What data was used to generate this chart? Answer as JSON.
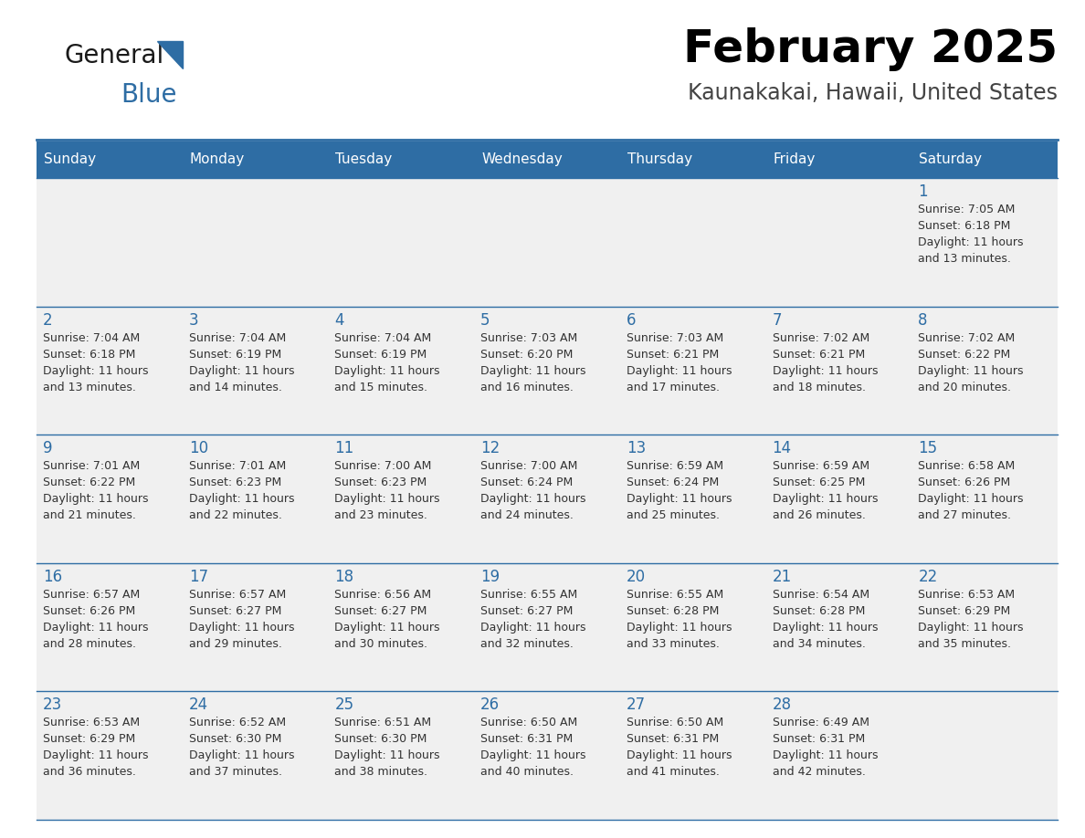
{
  "title": "February 2025",
  "subtitle": "Kaunakakai, Hawaii, United States",
  "header_bg": "#2E6DA4",
  "header_text_color": "#FFFFFF",
  "cell_bg": "#F0F0F0",
  "day_names": [
    "Sunday",
    "Monday",
    "Tuesday",
    "Wednesday",
    "Thursday",
    "Friday",
    "Saturday"
  ],
  "title_color": "#000000",
  "subtitle_color": "#444444",
  "date_color": "#2E6DA4",
  "info_color": "#333333",
  "line_color": "#2E6DA4",
  "logo_general_color": "#1a1a1a",
  "logo_blue_color": "#2E6DA4",
  "calendar": [
    [
      null,
      null,
      null,
      null,
      null,
      null,
      {
        "day": 1,
        "sunrise": "7:05 AM",
        "sunset": "6:18 PM",
        "daylight": "11 hours and 13 minutes."
      }
    ],
    [
      {
        "day": 2,
        "sunrise": "7:04 AM",
        "sunset": "6:18 PM",
        "daylight": "11 hours and 13 minutes."
      },
      {
        "day": 3,
        "sunrise": "7:04 AM",
        "sunset": "6:19 PM",
        "daylight": "11 hours and 14 minutes."
      },
      {
        "day": 4,
        "sunrise": "7:04 AM",
        "sunset": "6:19 PM",
        "daylight": "11 hours and 15 minutes."
      },
      {
        "day": 5,
        "sunrise": "7:03 AM",
        "sunset": "6:20 PM",
        "daylight": "11 hours and 16 minutes."
      },
      {
        "day": 6,
        "sunrise": "7:03 AM",
        "sunset": "6:21 PM",
        "daylight": "11 hours and 17 minutes."
      },
      {
        "day": 7,
        "sunrise": "7:02 AM",
        "sunset": "6:21 PM",
        "daylight": "11 hours and 18 minutes."
      },
      {
        "day": 8,
        "sunrise": "7:02 AM",
        "sunset": "6:22 PM",
        "daylight": "11 hours and 20 minutes."
      }
    ],
    [
      {
        "day": 9,
        "sunrise": "7:01 AM",
        "sunset": "6:22 PM",
        "daylight": "11 hours and 21 minutes."
      },
      {
        "day": 10,
        "sunrise": "7:01 AM",
        "sunset": "6:23 PM",
        "daylight": "11 hours and 22 minutes."
      },
      {
        "day": 11,
        "sunrise": "7:00 AM",
        "sunset": "6:23 PM",
        "daylight": "11 hours and 23 minutes."
      },
      {
        "day": 12,
        "sunrise": "7:00 AM",
        "sunset": "6:24 PM",
        "daylight": "11 hours and 24 minutes."
      },
      {
        "day": 13,
        "sunrise": "6:59 AM",
        "sunset": "6:24 PM",
        "daylight": "11 hours and 25 minutes."
      },
      {
        "day": 14,
        "sunrise": "6:59 AM",
        "sunset": "6:25 PM",
        "daylight": "11 hours and 26 minutes."
      },
      {
        "day": 15,
        "sunrise": "6:58 AM",
        "sunset": "6:26 PM",
        "daylight": "11 hours and 27 minutes."
      }
    ],
    [
      {
        "day": 16,
        "sunrise": "6:57 AM",
        "sunset": "6:26 PM",
        "daylight": "11 hours and 28 minutes."
      },
      {
        "day": 17,
        "sunrise": "6:57 AM",
        "sunset": "6:27 PM",
        "daylight": "11 hours and 29 minutes."
      },
      {
        "day": 18,
        "sunrise": "6:56 AM",
        "sunset": "6:27 PM",
        "daylight": "11 hours and 30 minutes."
      },
      {
        "day": 19,
        "sunrise": "6:55 AM",
        "sunset": "6:27 PM",
        "daylight": "11 hours and 32 minutes."
      },
      {
        "day": 20,
        "sunrise": "6:55 AM",
        "sunset": "6:28 PM",
        "daylight": "11 hours and 33 minutes."
      },
      {
        "day": 21,
        "sunrise": "6:54 AM",
        "sunset": "6:28 PM",
        "daylight": "11 hours and 34 minutes."
      },
      {
        "day": 22,
        "sunrise": "6:53 AM",
        "sunset": "6:29 PM",
        "daylight": "11 hours and 35 minutes."
      }
    ],
    [
      {
        "day": 23,
        "sunrise": "6:53 AM",
        "sunset": "6:29 PM",
        "daylight": "11 hours and 36 minutes."
      },
      {
        "day": 24,
        "sunrise": "6:52 AM",
        "sunset": "6:30 PM",
        "daylight": "11 hours and 37 minutes."
      },
      {
        "day": 25,
        "sunrise": "6:51 AM",
        "sunset": "6:30 PM",
        "daylight": "11 hours and 38 minutes."
      },
      {
        "day": 26,
        "sunrise": "6:50 AM",
        "sunset": "6:31 PM",
        "daylight": "11 hours and 40 minutes."
      },
      {
        "day": 27,
        "sunrise": "6:50 AM",
        "sunset": "6:31 PM",
        "daylight": "11 hours and 41 minutes."
      },
      {
        "day": 28,
        "sunrise": "6:49 AM",
        "sunset": "6:31 PM",
        "daylight": "11 hours and 42 minutes."
      },
      null
    ]
  ]
}
